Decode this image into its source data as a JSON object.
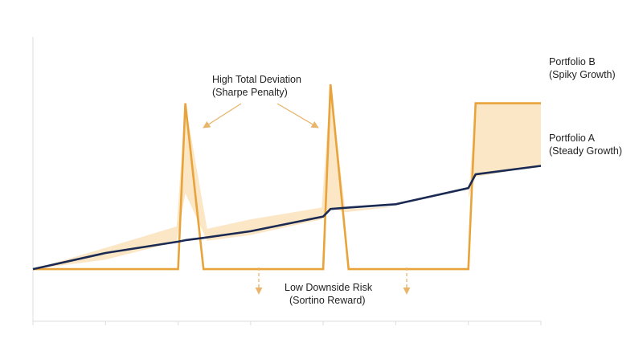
{
  "chart_data": {
    "type": "line",
    "title": "",
    "xlabel": "",
    "ylabel": "",
    "x": [
      0,
      1,
      2,
      2.1,
      2.35,
      3,
      4,
      4.1,
      4.35,
      5,
      6,
      6.1,
      7
    ],
    "xlim": [
      0,
      7
    ],
    "ylim": [
      -1.1,
      4.9
    ],
    "grid": false,
    "x_ticks": [
      0,
      1,
      2,
      3,
      4,
      5,
      6,
      7
    ],
    "series": [
      {
        "name": "Portfolio B (Spiky Growth)",
        "values": [
          0,
          0,
          0,
          3.5,
          0,
          0,
          0,
          3.9,
          0,
          0,
          0,
          3.5,
          3.5
        ]
      },
      {
        "name": "Portfolio A (Steady Growth)",
        "values": [
          0,
          0.34,
          0.58,
          0.61,
          0.66,
          0.8,
          1.11,
          1.27,
          1.3,
          1.37,
          1.71,
          2.0,
          2.18
        ]
      }
    ],
    "band": {
      "x": [
        0,
        1,
        1.98,
        2.1,
        2.4,
        3,
        3.98,
        4.1,
        4.3,
        5,
        6,
        6.1,
        7
      ],
      "upper": [
        0,
        0.45,
        0.9,
        3.5,
        0.85,
        1.05,
        1.3,
        3.9,
        1.27,
        1.32,
        1.5,
        3.5,
        3.5
      ],
      "lower": [
        0,
        0.2,
        0.58,
        1.6,
        0.6,
        0.72,
        1.05,
        1.3,
        1.2,
        1.32,
        1.5,
        1.95,
        2.18
      ]
    },
    "colors": {
      "portfolio_b": "#e8a33b",
      "portfolio_a": "#1a2a52",
      "band_fill": "#fbe6c6",
      "annotation": "#e8b56a",
      "axis": "#dddddd",
      "text": "#222222"
    },
    "legend": [
      {
        "line1": "Portfolio B",
        "line2": "(Spiky Growth)"
      },
      {
        "line1": "Portfolio A",
        "line2": "(Steady Growth)"
      }
    ],
    "annotations": {
      "top": {
        "line1": "High Total Deviation",
        "line2": "(Sharpe Penalty)"
      },
      "bottom": {
        "line1": "Low Downside Risk",
        "line2": "(Sortino Reward)"
      }
    }
  }
}
